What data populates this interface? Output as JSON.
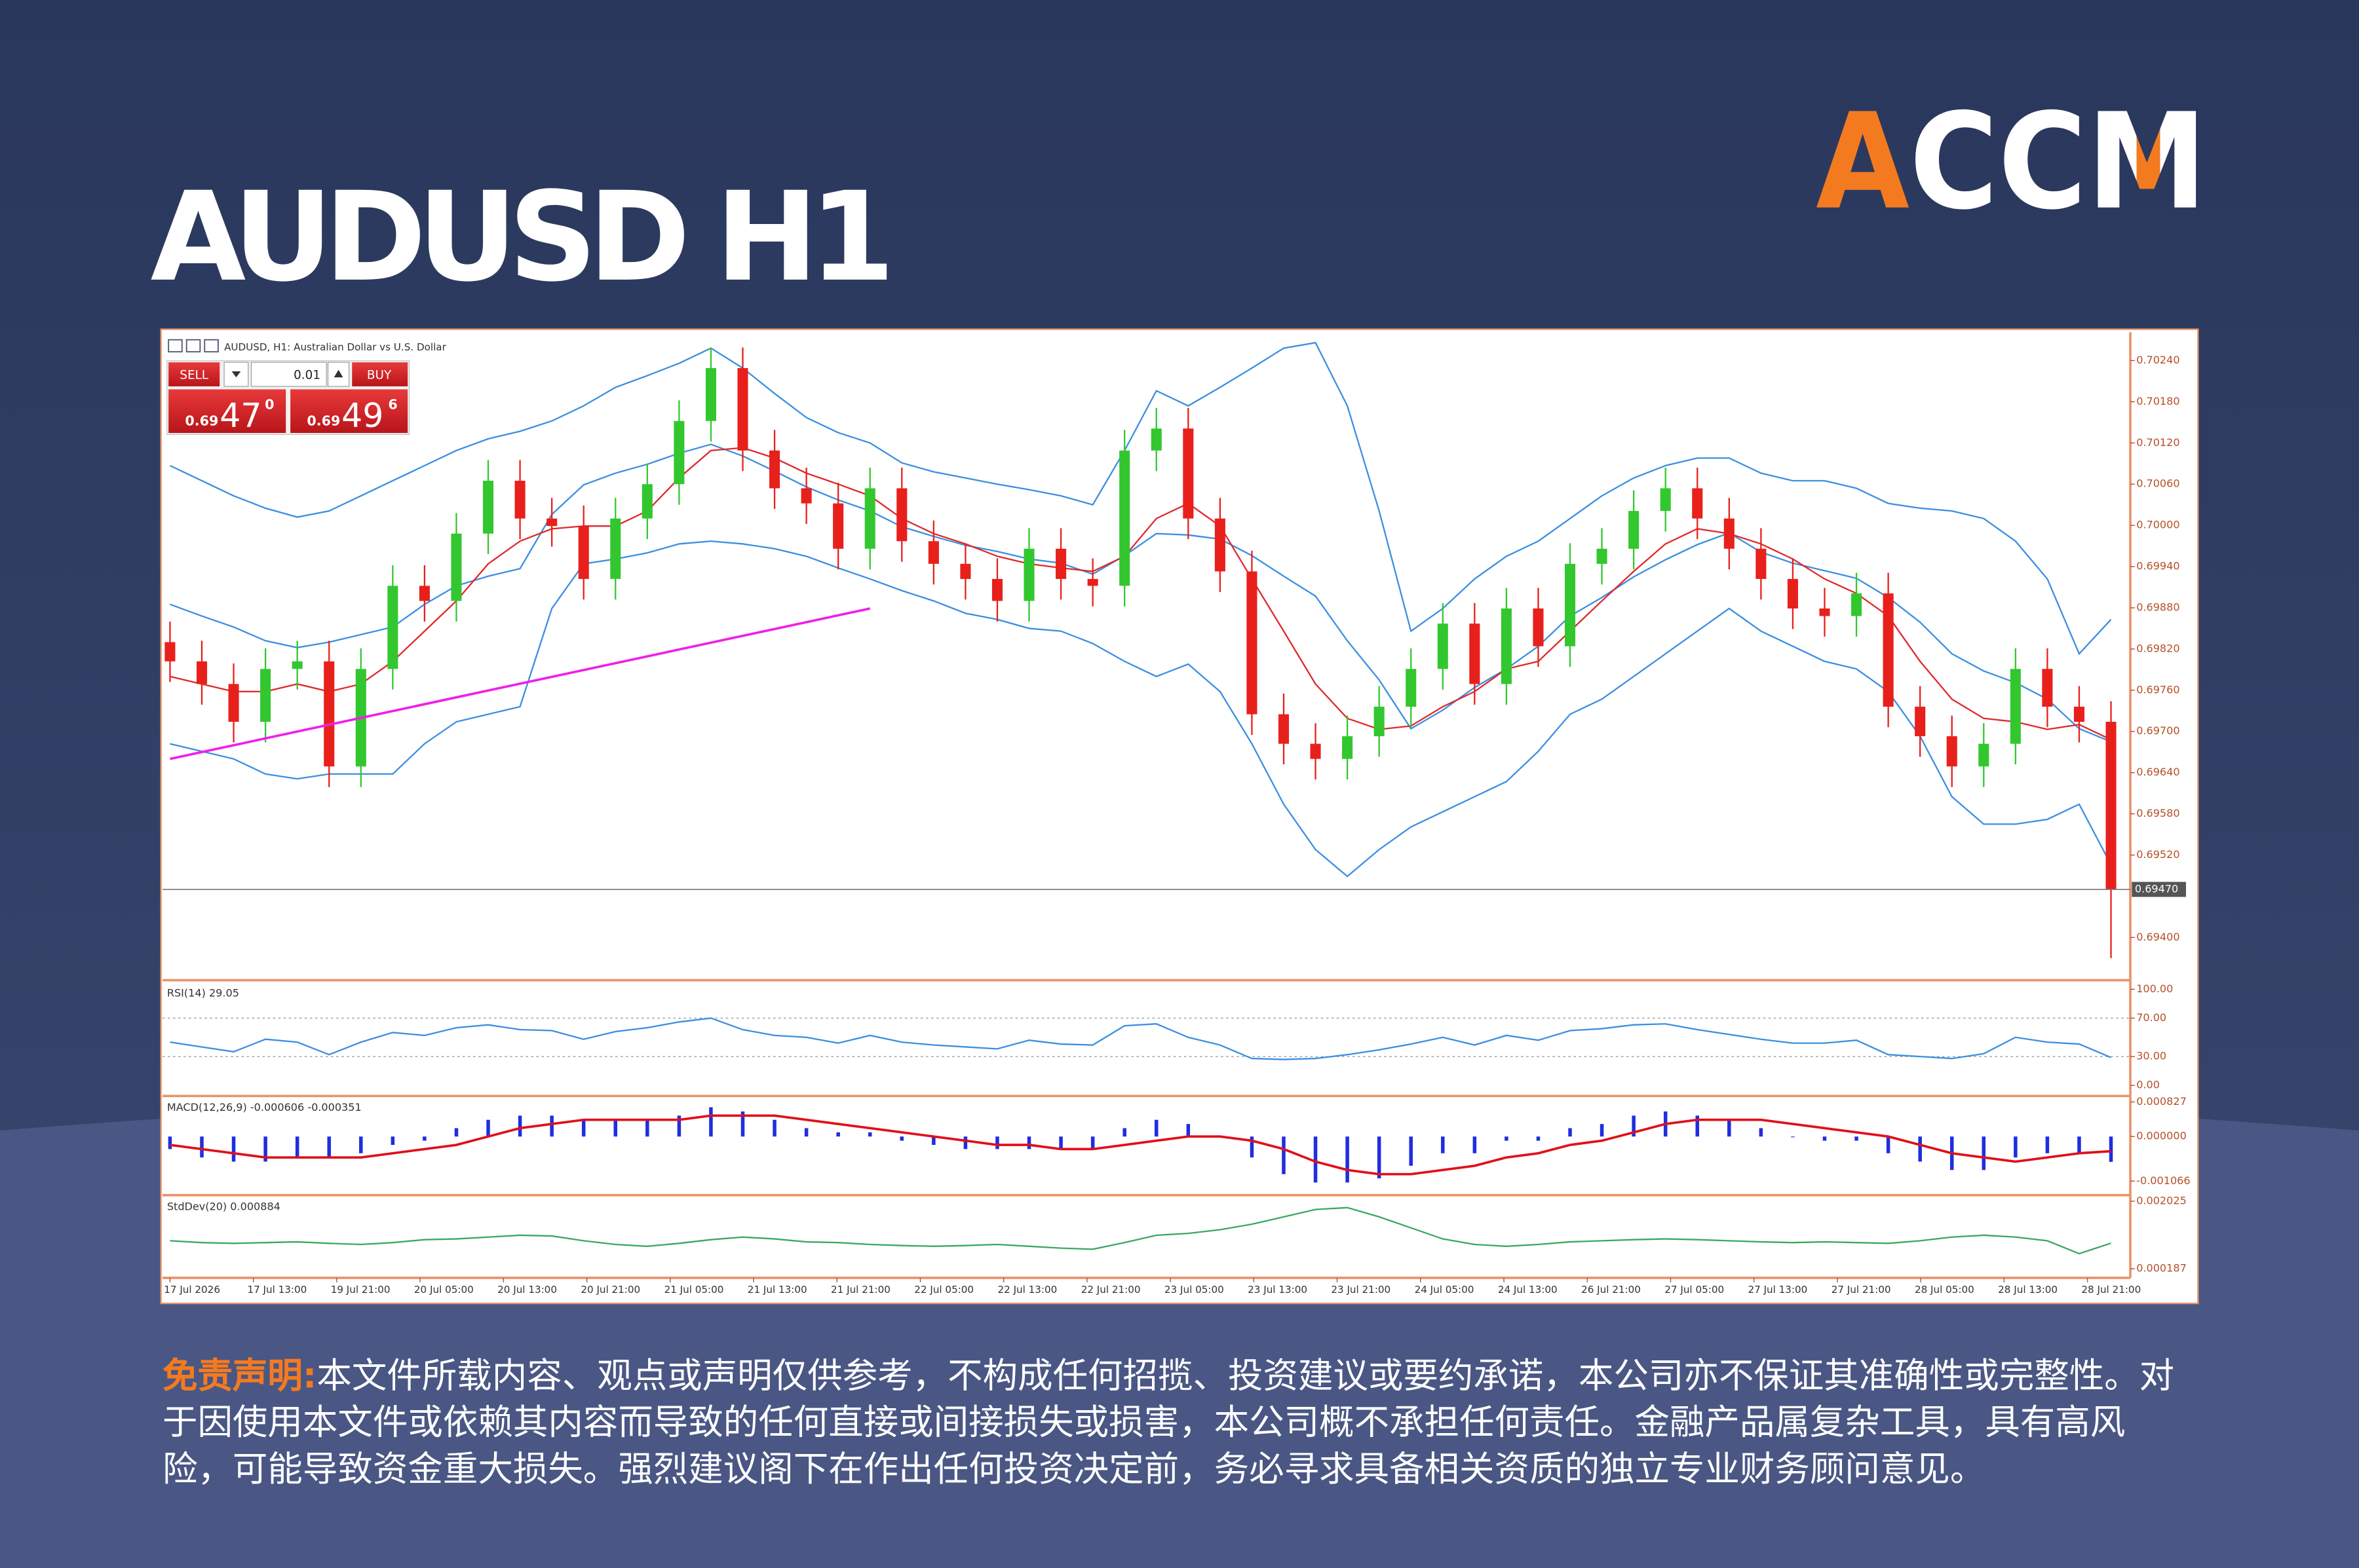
{
  "header": {
    "title": "AUDUSD H1",
    "logo": "ACCM"
  },
  "chart_data": {
    "type": "candlestick",
    "symbol": "AUDUSD, H1: Australian Dollar vs U.S. Dollar",
    "trade_panel": {
      "sell": "SELL",
      "buy": "BUY",
      "lot": "0.01",
      "sell_price": [
        "0.69",
        "47",
        "0"
      ],
      "buy_price": [
        "0.69",
        "49",
        "6"
      ]
    },
    "ylim": [
      0.6934,
      0.70279
    ],
    "yticks": [
      {
        "value": 0.7024,
        "label": "0.70240"
      },
      {
        "value": 0.7018,
        "label": "0.70180"
      },
      {
        "value": 0.7012,
        "label": "0.70120"
      },
      {
        "value": 0.7006,
        "label": "0.70060"
      },
      {
        "value": 0.7,
        "label": "0.70000"
      },
      {
        "value": 0.6994,
        "label": "0.69940"
      },
      {
        "value": 0.6988,
        "label": "0.69880"
      },
      {
        "value": 0.6982,
        "label": "0.69820"
      },
      {
        "value": 0.6976,
        "label": "0.69760"
      },
      {
        "value": 0.697,
        "label": "0.69700"
      },
      {
        "value": 0.6964,
        "label": "0.69640"
      },
      {
        "value": 0.6958,
        "label": "0.69580"
      },
      {
        "value": 0.6952,
        "label": "0.69520"
      },
      {
        "value": 0.694,
        "label": "0.69400"
      }
    ],
    "current_price": {
      "value": 0.6947,
      "label": "0.69470"
    },
    "up_color": "#33c72f",
    "down_color": "#e8201c",
    "candles": {
      "open": [
        0.6983,
        0.69802,
        0.69769,
        0.69714,
        0.69791,
        0.69802,
        0.69649,
        0.69791,
        0.69912,
        0.6989,
        0.69988,
        0.70065,
        0.7001,
        0.69999,
        0.69922,
        0.7001,
        0.7006,
        0.70152,
        0.70229,
        0.70109,
        0.70054,
        0.70032,
        0.69966,
        0.70054,
        0.69977,
        0.69944,
        0.69922,
        0.6989,
        0.69966,
        0.69922,
        0.69912,
        0.70109,
        0.70141,
        0.7001,
        0.69933,
        0.69725,
        0.69682,
        0.6966,
        0.69693,
        0.69736,
        0.69791,
        0.69857,
        0.69769,
        0.69879,
        0.69824,
        0.69944,
        0.69966,
        0.70021,
        0.70054,
        0.7001,
        0.69966,
        0.69922,
        0.69879,
        0.69868,
        0.69901,
        0.69736,
        0.69693,
        0.69649,
        0.69682,
        0.69791,
        0.69736,
        0.69714
      ],
      "high": [
        0.6986,
        0.69832,
        0.69799,
        0.69821,
        0.69832,
        0.69832,
        0.69821,
        0.69942,
        0.69942,
        0.70018,
        0.70095,
        0.70095,
        0.7004,
        0.70029,
        0.7004,
        0.7009,
        0.70182,
        0.70259,
        0.70259,
        0.70139,
        0.70084,
        0.70062,
        0.70084,
        0.70084,
        0.70007,
        0.69974,
        0.69952,
        0.69996,
        0.69996,
        0.69952,
        0.70139,
        0.70171,
        0.70171,
        0.7004,
        0.69963,
        0.69755,
        0.69712,
        0.69723,
        0.69766,
        0.69821,
        0.69887,
        0.69887,
        0.69909,
        0.69909,
        0.69974,
        0.69996,
        0.70051,
        0.70084,
        0.70084,
        0.7004,
        0.69996,
        0.69952,
        0.69909,
        0.69931,
        0.69931,
        0.69766,
        0.69723,
        0.69712,
        0.69821,
        0.69821,
        0.69766,
        0.69744
      ],
      "low": [
        0.69772,
        0.69739,
        0.69684,
        0.69684,
        0.69761,
        0.69619,
        0.69619,
        0.69761,
        0.6986,
        0.6986,
        0.69958,
        0.6998,
        0.69969,
        0.69892,
        0.69892,
        0.6998,
        0.7003,
        0.70122,
        0.70079,
        0.70024,
        0.70002,
        0.69936,
        0.69936,
        0.69947,
        0.69914,
        0.69892,
        0.6986,
        0.6986,
        0.69892,
        0.69882,
        0.69882,
        0.70079,
        0.6998,
        0.69903,
        0.69695,
        0.69652,
        0.6963,
        0.6963,
        0.69663,
        0.69706,
        0.69761,
        0.69739,
        0.69739,
        0.69794,
        0.69794,
        0.69914,
        0.69936,
        0.69991,
        0.6998,
        0.69936,
        0.69892,
        0.69849,
        0.69838,
        0.69838,
        0.69706,
        0.69663,
        0.69619,
        0.69619,
        0.69652,
        0.69706,
        0.69684,
        0.6937
      ],
      "close": [
        0.69802,
        0.69769,
        0.69714,
        0.69791,
        0.69802,
        0.69649,
        0.69791,
        0.69912,
        0.6989,
        0.69988,
        0.70065,
        0.7001,
        0.69999,
        0.69922,
        0.7001,
        0.7006,
        0.70152,
        0.70229,
        0.70109,
        0.70054,
        0.70032,
        0.69966,
        0.70054,
        0.69977,
        0.69944,
        0.69922,
        0.6989,
        0.69966,
        0.69922,
        0.69912,
        0.70109,
        0.70141,
        0.7001,
        0.69933,
        0.69725,
        0.69682,
        0.6966,
        0.69693,
        0.69736,
        0.69791,
        0.69857,
        0.69769,
        0.69879,
        0.69824,
        0.69944,
        0.69966,
        0.70021,
        0.70054,
        0.7001,
        0.69966,
        0.69922,
        0.69879,
        0.69868,
        0.69901,
        0.69736,
        0.69693,
        0.69649,
        0.69682,
        0.69791,
        0.69736,
        0.69714,
        0.6947
      ]
    },
    "overlays": [
      {
        "color": "#3b8fe0",
        "values": [
          0.70087,
          0.70065,
          0.70043,
          0.70025,
          0.70012,
          0.70021,
          0.70043,
          0.70065,
          0.70087,
          0.70109,
          0.70126,
          0.70137,
          0.70152,
          0.70174,
          0.70201,
          0.70218,
          0.70236,
          0.70258,
          0.70229,
          0.70192,
          0.70157,
          0.70135,
          0.7012,
          0.70091,
          0.70078,
          0.70069,
          0.7006,
          0.70052,
          0.70043,
          0.7003,
          0.70109,
          0.70196,
          0.70174,
          0.70201,
          0.70229,
          0.70258,
          0.70266,
          0.70174,
          0.70021,
          0.69846,
          0.69879,
          0.69922,
          0.69955,
          0.69977,
          0.7001,
          0.70043,
          0.70069,
          0.70087,
          0.70098,
          0.70098,
          0.70076,
          0.70065,
          0.70065,
          0.70054,
          0.70032,
          0.70025,
          0.70021,
          0.7001,
          0.69977,
          0.69922,
          0.69813,
          0.69863
        ]
      },
      {
        "color": "#3b8fe0",
        "values": [
          0.69885,
          0.69868,
          0.69852,
          0.69832,
          0.69822,
          0.6983,
          0.69841,
          0.69852,
          0.69885,
          0.69912,
          0.69926,
          0.69937,
          0.70016,
          0.70059,
          0.70076,
          0.70089,
          0.70105,
          0.70118,
          0.70101,
          0.70079,
          0.70056,
          0.70037,
          0.70021,
          0.69998,
          0.69984,
          0.69971,
          0.69962,
          0.69951,
          0.69945,
          0.69929,
          0.69956,
          0.69988,
          0.69986,
          0.6998,
          0.69956,
          0.69926,
          0.69897,
          0.69832,
          0.69775,
          0.69704,
          0.69731,
          0.69764,
          0.69791,
          0.69824,
          0.69868,
          0.69895,
          0.69925,
          0.6995,
          0.69972,
          0.69989,
          0.69961,
          0.69945,
          0.69934,
          0.69923,
          0.69895,
          0.69859,
          0.69813,
          0.69788,
          0.69771,
          0.69747,
          0.69704,
          0.69685
        ]
      },
      {
        "color": "#3b8fe0",
        "values": [
          0.69682,
          0.69671,
          0.6966,
          0.69638,
          0.69631,
          0.69638,
          0.69638,
          0.69638,
          0.69682,
          0.69714,
          0.69725,
          0.69736,
          0.69879,
          0.69944,
          0.69951,
          0.6996,
          0.69973,
          0.69977,
          0.69973,
          0.69966,
          0.69955,
          0.69938,
          0.69922,
          0.69905,
          0.6989,
          0.69872,
          0.69863,
          0.6985,
          0.69846,
          0.69828,
          0.69802,
          0.6978,
          0.69798,
          0.69758,
          0.69682,
          0.69594,
          0.69528,
          0.69489,
          0.69528,
          0.69561,
          0.69583,
          0.69605,
          0.69627,
          0.69671,
          0.69725,
          0.69747,
          0.6978,
          0.69813,
          0.69846,
          0.69879,
          0.69846,
          0.69824,
          0.69802,
          0.69791,
          0.69758,
          0.69693,
          0.69605,
          0.69565,
          0.69565,
          0.69572,
          0.69594,
          0.69506
        ]
      },
      {
        "color": "#e0282a",
        "values": [
          0.6978,
          0.69769,
          0.69758,
          0.69758,
          0.69769,
          0.69758,
          0.69769,
          0.69802,
          0.69846,
          0.6989,
          0.69944,
          0.69977,
          0.69995,
          0.69999,
          0.69999,
          0.70021,
          0.70069,
          0.70109,
          0.70113,
          0.70098,
          0.70076,
          0.7006,
          0.70043,
          0.7001,
          0.69988,
          0.69973,
          0.69955,
          0.69944,
          0.69938,
          0.69933,
          0.69955,
          0.7001,
          0.70032,
          0.69999,
          0.69922,
          0.69846,
          0.69769,
          0.69719,
          0.69703,
          0.69708,
          0.69736,
          0.69758,
          0.69791,
          0.69802,
          0.69846,
          0.6989,
          0.69933,
          0.69973,
          0.69995,
          0.69988,
          0.69973,
          0.69951,
          0.69922,
          0.69901,
          0.69868,
          0.69802,
          0.69747,
          0.69719,
          0.69714,
          0.69703,
          0.6971,
          0.69688
        ]
      }
    ],
    "trendline": {
      "color": "#f020e8",
      "x": [
        0,
        22
      ],
      "values": [
        0.6966,
        0.69879
      ]
    },
    "xticks": [
      {
        "value": 0,
        "label": "17 Jul 2026"
      },
      {
        "value": 2.62,
        "label": "17 Jul 13:00"
      },
      {
        "value": 5.24,
        "label": "19 Jul 21:00"
      },
      {
        "value": 7.86,
        "label": "20 Jul 05:00"
      },
      {
        "value": 10.48,
        "label": "20 Jul 13:00"
      },
      {
        "value": 13.1,
        "label": "20 Jul 21:00"
      },
      {
        "value": 15.72,
        "label": "21 Jul 05:00"
      },
      {
        "value": 18.34,
        "label": "21 Jul 13:00"
      },
      {
        "value": 20.96,
        "label": "21 Jul 21:00"
      },
      {
        "value": 23.58,
        "label": "22 Jul 05:00"
      },
      {
        "value": 26.2,
        "label": "22 Jul 13:00"
      },
      {
        "value": 28.82,
        "label": "22 Jul 21:00"
      },
      {
        "value": 31.44,
        "label": "23 Jul 05:00"
      },
      {
        "value": 34.06,
        "label": "23 Jul 13:00"
      },
      {
        "value": 36.68,
        "label": "23 Jul 21:00"
      },
      {
        "value": 39.3,
        "label": "24 Jul 05:00"
      },
      {
        "value": 41.92,
        "label": "24 Jul 13:00"
      },
      {
        "value": 44.54,
        "label": "26 Jul 21:00"
      },
      {
        "value": 47.16,
        "label": "27 Jul 05:00"
      },
      {
        "value": 49.78,
        "label": "27 Jul 13:00"
      },
      {
        "value": 52.4,
        "label": "27 Jul 21:00"
      },
      {
        "value": 55.02,
        "label": "28 Jul 05:00"
      },
      {
        "value": 57.64,
        "label": "28 Jul 13:00"
      },
      {
        "value": 60.26,
        "label": "28 Jul 21:00"
      }
    ],
    "panels": [
      {
        "label": "RSI(14) 29.05",
        "ylim": [
          -9.4,
          106.3
        ],
        "grid": true,
        "yticks": [
          {
            "value": 100,
            "label": "100.00"
          },
          {
            "value": 70,
            "label": "70.00"
          },
          {
            "value": 30,
            "label": "30.00"
          },
          {
            "value": 0,
            "label": "0.00"
          }
        ],
        "series": [
          {
            "type": "line",
            "color": "#3b8fe0",
            "values": [
              45,
              40,
              35,
              48,
              45,
              32,
              45,
              55,
              52,
              60,
              63,
              58,
              57,
              48,
              56,
              60,
              66,
              70,
              58,
              52,
              50,
              44,
              52,
              45,
              42,
              40,
              38,
              47,
              43,
              42,
              62,
              64,
              50,
              42,
              28,
              27,
              28,
              32,
              37,
              43,
              50,
              42,
              52,
              47,
              57,
              59,
              63,
              64,
              58,
              53,
              48,
              44,
              44,
              47,
              32,
              30,
              28,
              33,
              50,
              45,
              43,
              29.05
            ]
          }
        ]
      },
      {
        "label": "MACD(12,26,9) -0.000606 -0.000351",
        "ylim": [
          -0.001367,
          0.000935
        ],
        "grid": false,
        "yticks": [
          0.000827,
          {
            "value": 0,
            "label": "0.000000"
          },
          -0.001066
        ],
        "series": [
          {
            "type": "bar",
            "color": "#1f2ee0",
            "values": [
              -0.0003,
              -0.0005,
              -0.0006,
              -0.0006,
              -0.0005,
              -0.0005,
              -0.0004,
              -0.0002,
              -0.0001,
              0.0002,
              0.0004,
              0.0005,
              0.0005,
              0.0004,
              0.0004,
              0.0004,
              0.0005,
              0.0007,
              0.0006,
              0.0004,
              0.0002,
              0.0001,
              0.0001,
              -0.0001,
              -0.0002,
              -0.0003,
              -0.0003,
              -0.0003,
              -0.0003,
              -0.0003,
              0.0002,
              0.0004,
              0.0003,
              0,
              -0.0005,
              -0.0009,
              -0.0011,
              -0.0011,
              -0.001,
              -0.0007,
              -0.0004,
              -0.0004,
              -0.0001,
              -0.0001,
              0.0002,
              0.0003,
              0.0005,
              0.0006,
              0.0005,
              0.0004,
              0.0002,
              0,
              -0.0001,
              -0.0001,
              -0.0004,
              -0.0006,
              -0.0008,
              -0.0008,
              -0.0005,
              -0.0004,
              -0.0004,
              -0.000606
            ]
          },
          {
            "type": "line",
            "color": "#e0101a",
            "values": [
              -0.0002,
              -0.0003,
              -0.0004,
              -0.0005,
              -0.0005,
              -0.0005,
              -0.0005,
              -0.0004,
              -0.0003,
              -0.0002,
              0,
              0.0002,
              0.0003,
              0.0004,
              0.0004,
              0.0004,
              0.0004,
              0.0005,
              0.0005,
              0.0005,
              0.0004,
              0.0003,
              0.0002,
              0.0001,
              0,
              -0.0001,
              -0.0002,
              -0.0002,
              -0.0003,
              -0.0003,
              -0.0002,
              -0.0001,
              0,
              0,
              -0.0001,
              -0.0003,
              -0.0006,
              -0.0008,
              -0.0009,
              -0.0009,
              -0.0008,
              -0.0007,
              -0.0005,
              -0.0004,
              -0.0002,
              -0.0001,
              0.0001,
              0.0003,
              0.0004,
              0.0004,
              0.0004,
              0.0003,
              0.0002,
              0.0001,
              0,
              -0.0002,
              -0.0004,
              -0.0005,
              -0.0006,
              -0.0005,
              -0.0004,
              -0.000351
            ]
          }
        ]
      },
      {
        "label": "StdDev(20) 0.000884",
        "ylim": [
          -1.7e-05,
          0.002148
        ],
        "grid": false,
        "yticks": [
          0.002025,
          0.000187
        ],
        "series": [
          {
            "type": "line",
            "color": "#3aa862",
            "values": [
              0.00095,
              0.0009,
              0.00088,
              0.0009,
              0.00092,
              0.00088,
              0.00085,
              0.0009,
              0.00098,
              0.001,
              0.00105,
              0.0011,
              0.00108,
              0.00095,
              0.00085,
              0.0008,
              0.00088,
              0.00098,
              0.00105,
              0.001,
              0.00092,
              0.0009,
              0.00085,
              0.00082,
              0.0008,
              0.00082,
              0.00085,
              0.0008,
              0.00075,
              0.00072,
              0.0009,
              0.0011,
              0.00115,
              0.00125,
              0.0014,
              0.0016,
              0.0018,
              0.00185,
              0.0016,
              0.0013,
              0.001,
              0.00085,
              0.0008,
              0.00085,
              0.00092,
              0.00095,
              0.00098,
              0.001,
              0.00098,
              0.00095,
              0.00092,
              0.0009,
              0.00092,
              0.0009,
              0.00088,
              0.00095,
              0.00105,
              0.0011,
              0.00105,
              0.00095,
              0.0006,
              0.000884
            ]
          }
        ]
      }
    ]
  },
  "disclaimer": {
    "label": "免责声明:",
    "text": "本文件所载内容、观点或声明仅供参考，不构成任何招揽、投资建议或要约承诺，本公司亦不保证其准确性或完整性。对于因使用本文件或依赖其内容而导致的任何直接或间接损失或损害，本公司概不承担任何责任。金融产品属复杂工具，具有高风险，可能导致资金重大损失。强烈建议阁下在作出任何投资决定前，务必寻求具备相关资质的独立专业财务顾问意见。"
  }
}
